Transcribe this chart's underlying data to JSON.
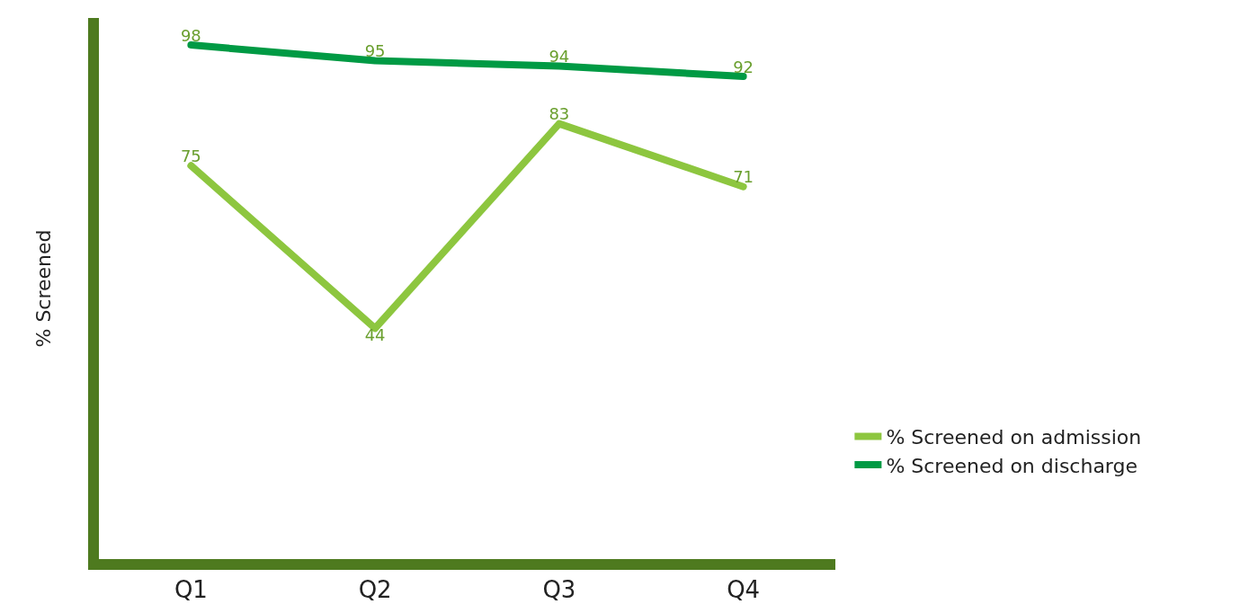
{
  "chart_data": {
    "type": "line",
    "ylabel": "% Screened",
    "categories": [
      "Q1",
      "Q2",
      "Q3",
      "Q4"
    ],
    "series": [
      {
        "name": "% Screened on admission",
        "color": "#8dc63f",
        "values": [
          75,
          44,
          83,
          71
        ]
      },
      {
        "name": "% Screened on discharge",
        "color": "#009a44",
        "values": [
          98,
          95,
          94,
          92
        ]
      }
    ],
    "tick_labels": "x",
    "data_labels": true,
    "legend": "right",
    "marker": "none",
    "line_style": "solid"
  }
}
